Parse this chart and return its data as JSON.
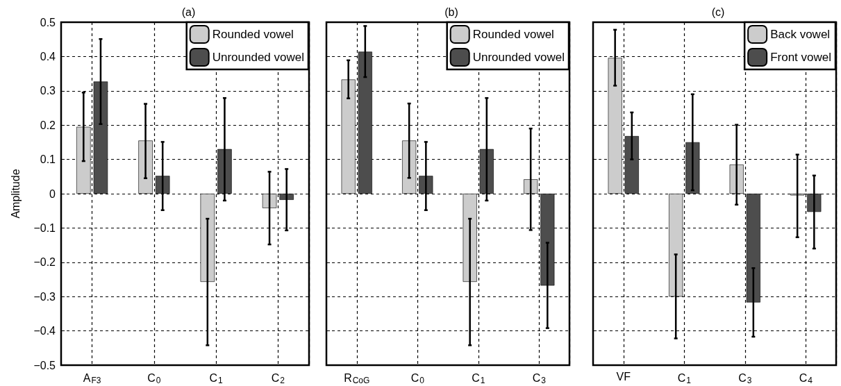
{
  "chart_data": [
    {
      "type": "bar",
      "title": "(a)",
      "ylabel": "Amplitude",
      "categories": [
        "A$_{F3}$",
        "C$_{0}$",
        "C$_{1}$",
        "C$_{2}$"
      ],
      "series": [
        {
          "name": "Rounded vowel",
          "color": "#cccccc",
          "values": [
            0.195,
            0.155,
            -0.257,
            -0.042
          ],
          "errors": [
            [
              0.095,
              0.295
            ],
            [
              0.045,
              0.262
            ],
            [
              -0.442,
              -0.073
            ],
            [
              -0.148,
              0.064
            ]
          ]
        },
        {
          "name": "Unrounded vowel",
          "color": "#4d4d4d",
          "values": [
            0.327,
            0.052,
            0.13,
            -0.018
          ],
          "errors": [
            [
              0.203,
              0.451
            ],
            [
              -0.048,
              0.151
            ],
            [
              -0.02,
              0.279
            ],
            [
              -0.107,
              0.072
            ]
          ]
        }
      ],
      "ylim": [
        -0.5,
        0.5
      ],
      "yticks": [
        -0.5,
        -0.4,
        -0.3,
        -0.2,
        -0.1,
        0,
        0.1,
        0.2,
        0.3,
        0.4,
        0.5
      ],
      "grid": true,
      "legend": "top right"
    },
    {
      "type": "bar",
      "title": "(b)",
      "categories": [
        "R$_{CoG}$",
        "C$_{0}$",
        "C$_{1}$",
        "C$_{3}$"
      ],
      "series": [
        {
          "name": "Rounded vowel",
          "color": "#cccccc",
          "values": [
            0.333,
            0.155,
            -0.257,
            0.042
          ],
          "errors": [
            [
              0.278,
              0.389
            ],
            [
              0.046,
              0.263
            ],
            [
              -0.442,
              -0.073
            ],
            [
              -0.106,
              0.19
            ]
          ]
        },
        {
          "name": "Unrounded vowel",
          "color": "#4d4d4d",
          "values": [
            0.414,
            0.052,
            0.13,
            -0.268
          ],
          "errors": [
            [
              0.34,
              0.489
            ],
            [
              -0.048,
              0.151
            ],
            [
              -0.02,
              0.279
            ],
            [
              -0.392,
              -0.143
            ]
          ]
        }
      ],
      "ylim": [
        -0.5,
        0.5
      ],
      "yticks": [
        -0.5,
        -0.4,
        -0.3,
        -0.2,
        -0.1,
        0,
        0.1,
        0.2,
        0.3,
        0.4,
        0.5
      ],
      "grid": true,
      "legend": "top right",
      "tick_labels": "x"
    },
    {
      "type": "bar",
      "title": "(c)",
      "categories": [
        "VF",
        "C$_{1}$",
        "C$_{3}$",
        "C$_{4}$"
      ],
      "series": [
        {
          "name": "Back vowel",
          "color": "#cccccc",
          "values": [
            0.396,
            -0.3,
            0.085,
            -0.005
          ],
          "errors": [
            [
              0.315,
              0.478
            ],
            [
              -0.422,
              -0.177
            ],
            [
              -0.032,
              0.201
            ],
            [
              -0.127,
              0.114
            ]
          ]
        },
        {
          "name": "Front vowel",
          "color": "#4d4d4d",
          "values": [
            0.168,
            0.15,
            -0.317,
            -0.053
          ],
          "errors": [
            [
              0.1,
              0.237
            ],
            [
              0.01,
              0.29
            ],
            [
              -0.417,
              -0.217
            ],
            [
              -0.16,
              0.053
            ]
          ]
        }
      ],
      "ylim": [
        -0.5,
        0.5
      ],
      "yticks": [
        -0.5,
        -0.4,
        -0.3,
        -0.2,
        -0.1,
        0,
        0.1,
        0.2,
        0.3,
        0.4,
        0.5
      ],
      "grid": true,
      "legend": "top right",
      "tick_labels": "x"
    }
  ]
}
